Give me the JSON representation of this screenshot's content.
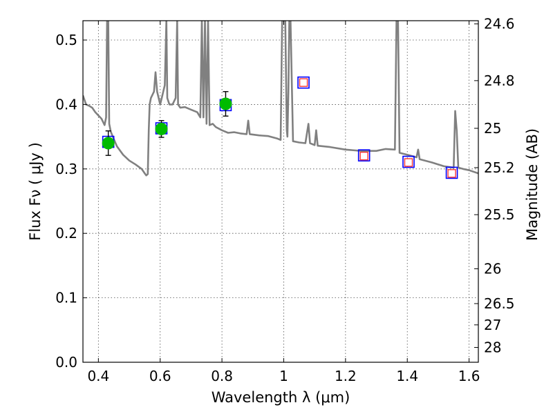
{
  "chart_data": {
    "type": "scatter",
    "title": "",
    "xlabel": "Wavelength  λ (μm)",
    "ylabel": "Flux  Fν  ( μJy )",
    "y2label": "Magnitude (AB)",
    "xlim": [
      0.35,
      1.63
    ],
    "ylim": [
      0.0,
      0.53
    ],
    "grid": true,
    "x_ticks": [
      0.4,
      0.6,
      0.8,
      1.0,
      1.2,
      1.4,
      1.6
    ],
    "x_tick_labels": [
      "0.4",
      "0.6",
      "0.8",
      "1",
      "1.2",
      "1.4",
      "1.6"
    ],
    "y_ticks": [
      0.0,
      0.1,
      0.2,
      0.3,
      0.4,
      0.5
    ],
    "y_tick_labels": [
      "0.0",
      "0.1",
      "0.2",
      "0.3",
      "0.4",
      "0.5"
    ],
    "y2_ticks": [
      {
        "label": "24.6",
        "flux": 0.525
      },
      {
        "label": "24.8",
        "flux": 0.437
      },
      {
        "label": "25",
        "flux": 0.363
      },
      {
        "label": "25.2",
        "flux": 0.302
      },
      {
        "label": "25.5",
        "flux": 0.229
      },
      {
        "label": "26",
        "flux": 0.145
      },
      {
        "label": "26.5",
        "flux": 0.091
      },
      {
        "label": "27",
        "flux": 0.058
      },
      {
        "label": "28",
        "flux": 0.023
      }
    ],
    "model_spectrum": {
      "color": "#808080",
      "points": [
        [
          0.35,
          0.414
        ],
        [
          0.36,
          0.4
        ],
        [
          0.37,
          0.398
        ],
        [
          0.38,
          0.395
        ],
        [
          0.39,
          0.388
        ],
        [
          0.4,
          0.383
        ],
        [
          0.41,
          0.378
        ],
        [
          0.42,
          0.368
        ],
        [
          0.425,
          0.38
        ],
        [
          0.428,
          0.53
        ],
        [
          0.432,
          0.53
        ],
        [
          0.435,
          0.37
        ],
        [
          0.44,
          0.358
        ],
        [
          0.45,
          0.346
        ],
        [
          0.46,
          0.335
        ],
        [
          0.48,
          0.322
        ],
        [
          0.5,
          0.313
        ],
        [
          0.52,
          0.307
        ],
        [
          0.54,
          0.3
        ],
        [
          0.55,
          0.293
        ],
        [
          0.555,
          0.29
        ],
        [
          0.56,
          0.292
        ],
        [
          0.563,
          0.36
        ],
        [
          0.566,
          0.4
        ],
        [
          0.57,
          0.41
        ],
        [
          0.58,
          0.42
        ],
        [
          0.585,
          0.45
        ],
        [
          0.59,
          0.42
        ],
        [
          0.6,
          0.4
        ],
        [
          0.605,
          0.41
        ],
        [
          0.61,
          0.42
        ],
        [
          0.615,
          0.43
        ],
        [
          0.62,
          0.53
        ],
        [
          0.623,
          0.41
        ],
        [
          0.63,
          0.4
        ],
        [
          0.64,
          0.4
        ],
        [
          0.65,
          0.41
        ],
        [
          0.655,
          0.53
        ],
        [
          0.658,
          0.4
        ],
        [
          0.665,
          0.395
        ],
        [
          0.68,
          0.396
        ],
        [
          0.7,
          0.392
        ],
        [
          0.72,
          0.388
        ],
        [
          0.73,
          0.38
        ],
        [
          0.735,
          0.53
        ],
        [
          0.74,
          0.38
        ],
        [
          0.745,
          0.53
        ],
        [
          0.75,
          0.37
        ],
        [
          0.755,
          0.53
        ],
        [
          0.76,
          0.368
        ],
        [
          0.77,
          0.37
        ],
        [
          0.78,
          0.365
        ],
        [
          0.8,
          0.36
        ],
        [
          0.82,
          0.356
        ],
        [
          0.84,
          0.357
        ],
        [
          0.86,
          0.355
        ],
        [
          0.88,
          0.354
        ],
        [
          0.885,
          0.375
        ],
        [
          0.89,
          0.354
        ],
        [
          0.92,
          0.352
        ],
        [
          0.95,
          0.351
        ],
        [
          0.98,
          0.347
        ],
        [
          0.99,
          0.345
        ],
        [
          0.995,
          0.53
        ],
        [
          1.005,
          0.53
        ],
        [
          1.01,
          0.36
        ],
        [
          1.012,
          0.35
        ],
        [
          1.015,
          0.42
        ],
        [
          1.018,
          0.53
        ],
        [
          1.022,
          0.53
        ],
        [
          1.03,
          0.343
        ],
        [
          1.05,
          0.341
        ],
        [
          1.07,
          0.34
        ],
        [
          1.08,
          0.37
        ],
        [
          1.085,
          0.34
        ],
        [
          1.1,
          0.337
        ],
        [
          1.105,
          0.36
        ],
        [
          1.11,
          0.336
        ],
        [
          1.15,
          0.334
        ],
        [
          1.2,
          0.33
        ],
        [
          1.25,
          0.328
        ],
        [
          1.3,
          0.328
        ],
        [
          1.33,
          0.331
        ],
        [
          1.36,
          0.33
        ],
        [
          1.365,
          0.53
        ],
        [
          1.37,
          0.53
        ],
        [
          1.375,
          0.325
        ],
        [
          1.4,
          0.322
        ],
        [
          1.43,
          0.318
        ],
        [
          1.435,
          0.33
        ],
        [
          1.44,
          0.315
        ],
        [
          1.48,
          0.31
        ],
        [
          1.52,
          0.304
        ],
        [
          1.55,
          0.302
        ],
        [
          1.555,
          0.39
        ],
        [
          1.56,
          0.36
        ],
        [
          1.565,
          0.302
        ],
        [
          1.58,
          0.3
        ],
        [
          1.6,
          0.298
        ],
        [
          1.63,
          0.293
        ]
      ]
    },
    "observed_points": {
      "marker": "circle",
      "color": "#00bb00",
      "points": [
        {
          "x": 0.432,
          "y": 0.34,
          "err": 0.019
        },
        {
          "x": 0.604,
          "y": 0.362,
          "err": 0.013
        },
        {
          "x": 0.812,
          "y": 0.401,
          "err": 0.019
        }
      ]
    },
    "model_predicted_points": {
      "marker": "square-open",
      "color": "#ff3333",
      "points": [
        {
          "x": 1.064,
          "y": 0.434
        },
        {
          "x": 1.26,
          "y": 0.32
        },
        {
          "x": 1.404,
          "y": 0.31
        },
        {
          "x": 1.544,
          "y": 0.293
        }
      ]
    },
    "synthetic_band_points": {
      "marker": "square-open",
      "color": "#0000ff",
      "points": [
        {
          "x": 0.432,
          "y": 0.342
        },
        {
          "x": 0.604,
          "y": 0.363
        },
        {
          "x": 0.812,
          "y": 0.399
        },
        {
          "x": 1.064,
          "y": 0.434
        },
        {
          "x": 1.26,
          "y": 0.321
        },
        {
          "x": 1.404,
          "y": 0.311
        },
        {
          "x": 1.544,
          "y": 0.294
        }
      ]
    }
  }
}
